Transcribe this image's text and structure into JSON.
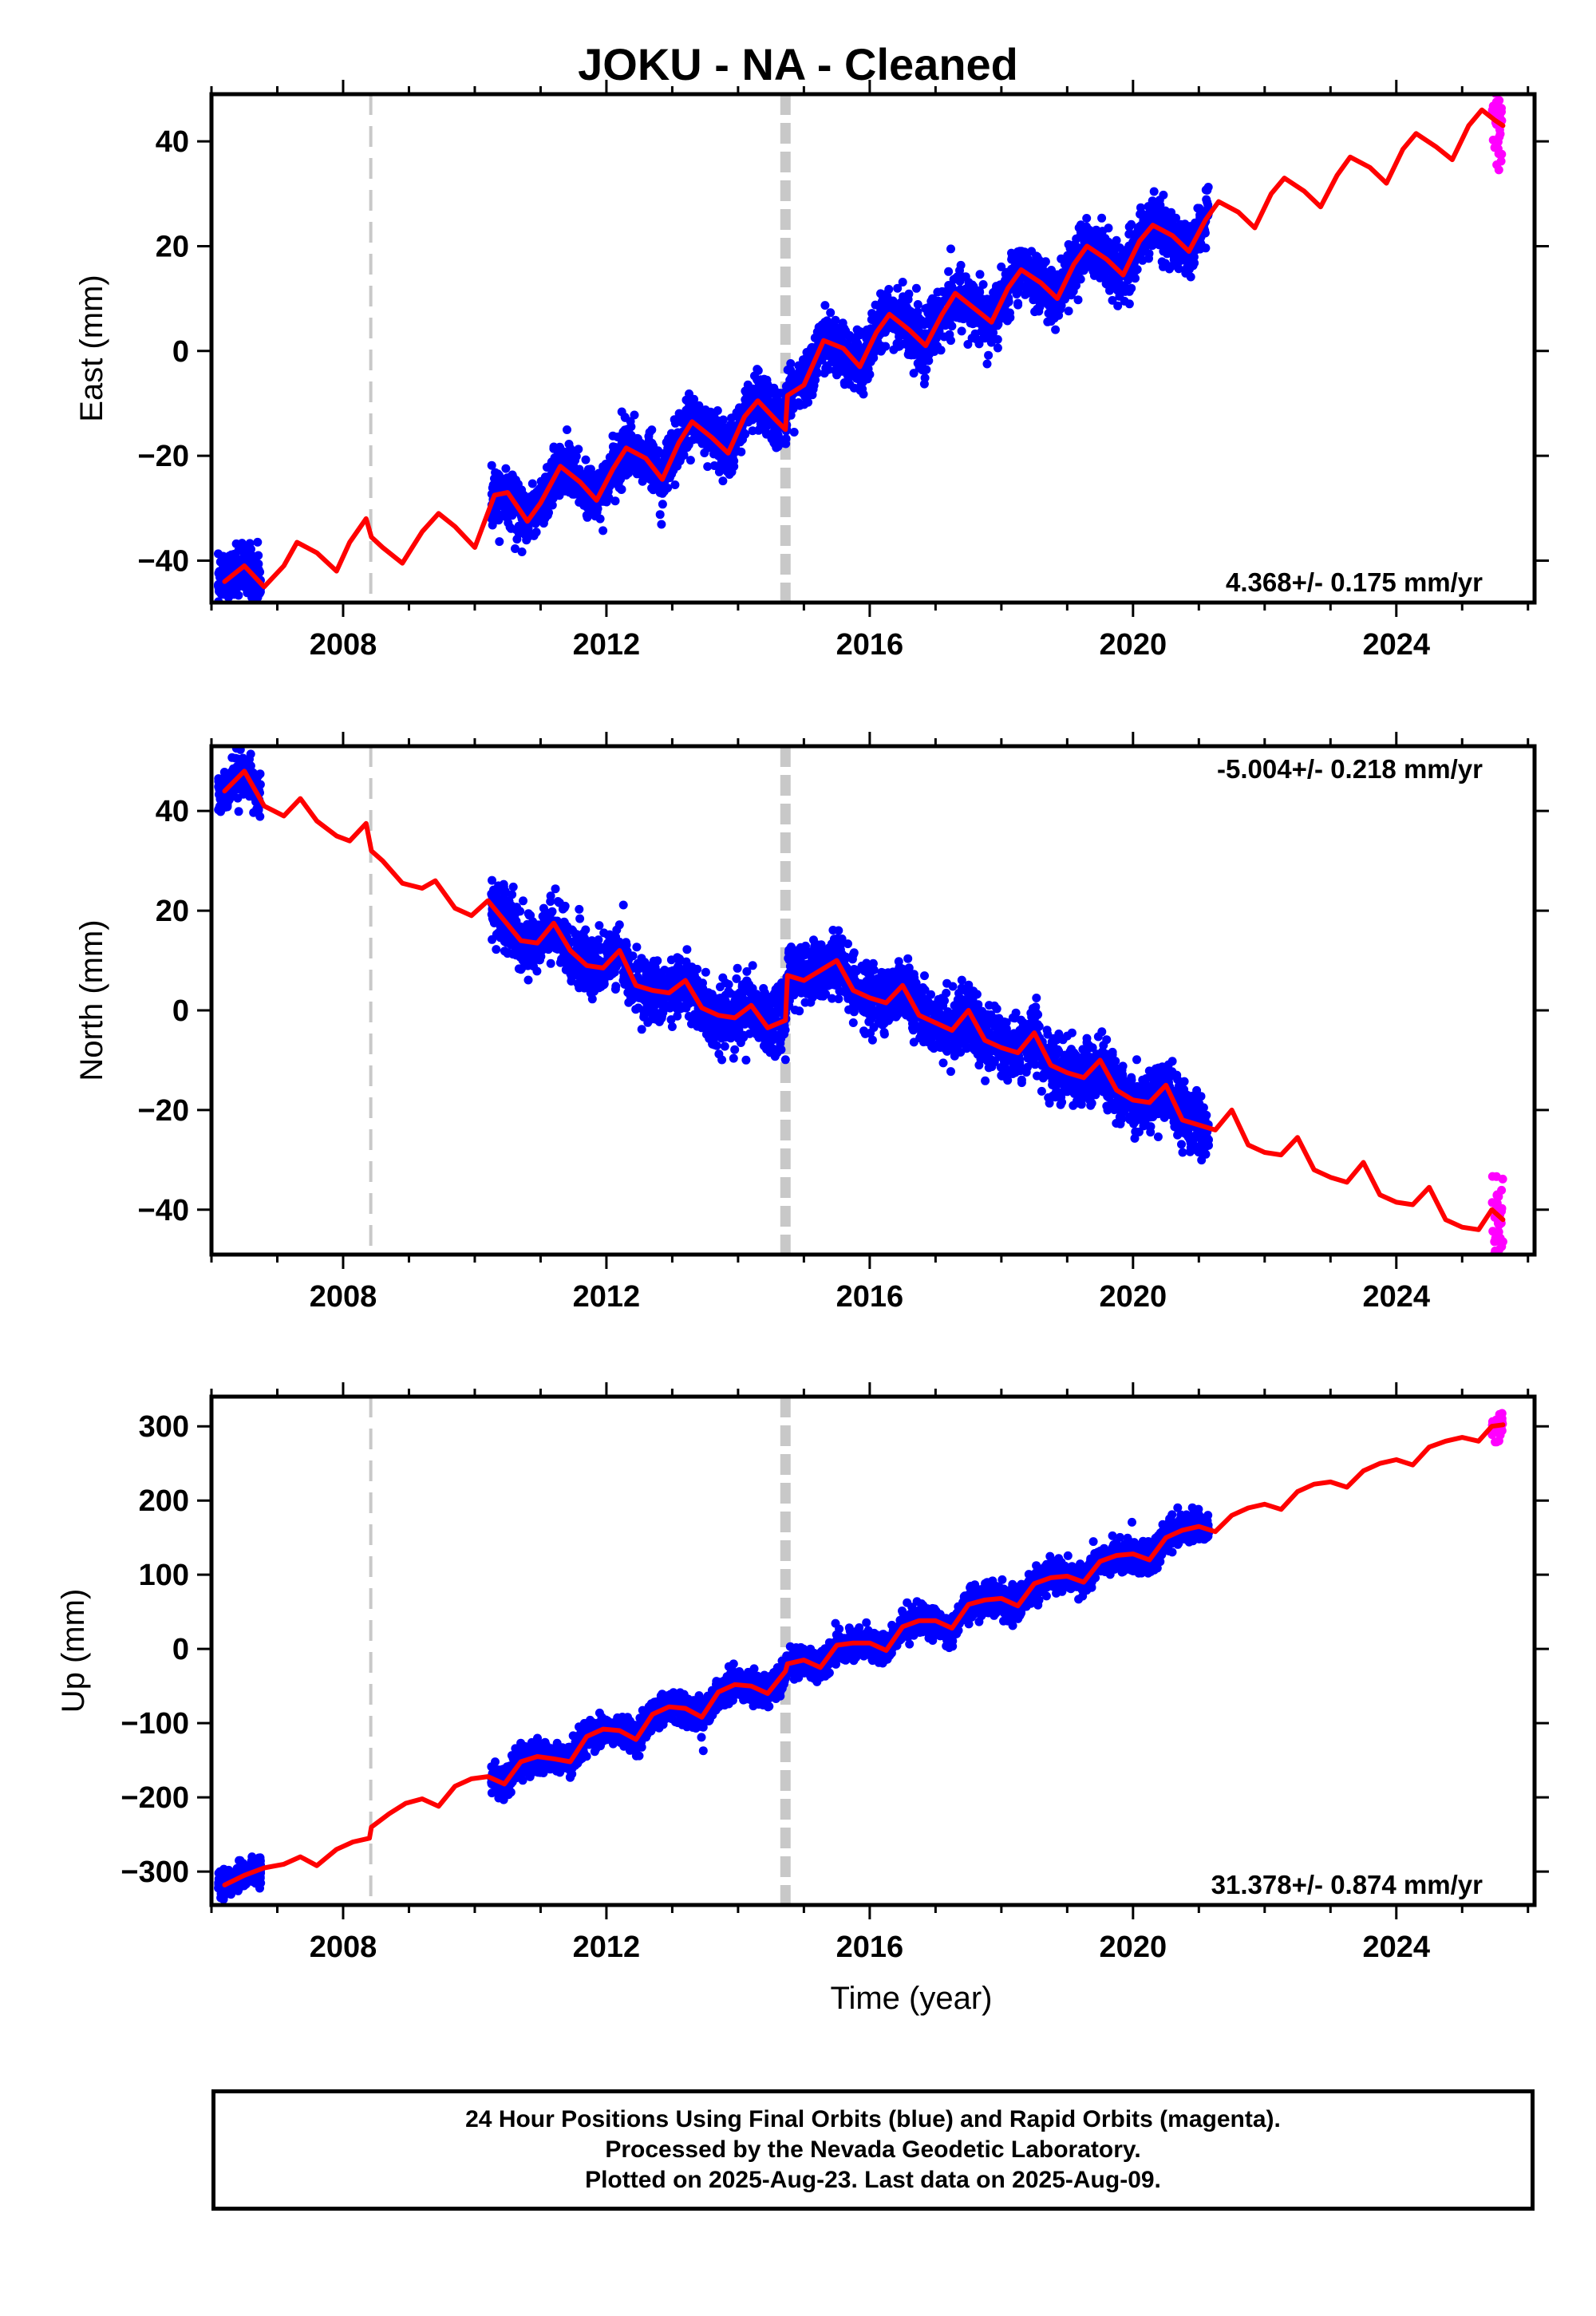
{
  "title": "JOKU  - NA - Cleaned",
  "colors": {
    "final_orbits": "#0000ff",
    "rapid_orbits": "#ff00ff",
    "model": "#ff0000",
    "event_lines": "#c8c8c8",
    "frame": "#000000"
  },
  "footer": {
    "line1": "24 Hour Positions Using Final Orbits (blue) and Rapid Orbits (magenta).",
    "line2": "Processed by the Nevada Geodetic Laboratory.",
    "line3": "Plotted on 2025-Aug-23. Last data on 2025-Aug-09."
  },
  "chart_data": [
    {
      "type": "scatter",
      "ylabel": "East (mm)",
      "xlim": [
        2006.0,
        2026.1
      ],
      "ylim": [
        -48,
        49
      ],
      "xticks": [
        2008,
        2012,
        2016,
        2020,
        2024
      ],
      "yticks": [
        -40,
        -20,
        0,
        20,
        40
      ],
      "rate_label": "4.368+/- 0.175 mm/yr",
      "rate_position": "bottom-right",
      "event_lines": [
        {
          "x": 2008.42,
          "style": "dashed-thin"
        },
        {
          "x": 2014.72,
          "style": "dashed-thick"
        }
      ],
      "series": [
        {
          "kind": "model",
          "x": [
            2006.2,
            2006.5,
            2006.8,
            2007.1,
            2007.3,
            2007.6,
            2007.9,
            2008.1,
            2008.35,
            2008.43,
            2008.6,
            2008.9,
            2009.2,
            2009.45,
            2009.7,
            2010.0,
            2010.3,
            2010.5,
            2010.8,
            2011.0,
            2011.3,
            2011.6,
            2011.85,
            2012.1,
            2012.3,
            2012.6,
            2012.85,
            2013.1,
            2013.3,
            2013.6,
            2013.85,
            2014.1,
            2014.3,
            2014.6,
            2014.72,
            2014.75,
            2015.0,
            2015.3,
            2015.6,
            2015.85,
            2016.1,
            2016.3,
            2016.6,
            2016.85,
            2017.1,
            2017.3,
            2017.6,
            2017.85,
            2018.1,
            2018.3,
            2018.6,
            2018.85,
            2019.1,
            2019.3,
            2019.6,
            2019.85,
            2020.1,
            2020.3,
            2020.6,
            2020.85,
            2021.1,
            2021.3,
            2021.6,
            2021.85,
            2022.1,
            2022.3,
            2022.6,
            2022.85,
            2023.1,
            2023.3,
            2023.6,
            2023.85,
            2024.1,
            2024.3,
            2024.6,
            2024.85,
            2025.1,
            2025.3,
            2025.5,
            2025.62
          ],
          "y": [
            -44,
            -41,
            -45,
            -41,
            -36.5,
            -38.5,
            -42,
            -36.5,
            -32,
            -35.5,
            -37.5,
            -40.5,
            -34.5,
            -31,
            -33.5,
            -37.5,
            -27.5,
            -27,
            -32.5,
            -29,
            -22,
            -25,
            -28.5,
            -22.5,
            -18.5,
            -20.5,
            -24.5,
            -17.5,
            -13.5,
            -16.5,
            -19.5,
            -12.5,
            -9.5,
            -13.5,
            -15,
            -8.5,
            -6.5,
            2,
            0.5,
            -3,
            3.5,
            7,
            4,
            1,
            7,
            11,
            8,
            5.5,
            12,
            15.5,
            13,
            10,
            16.5,
            20,
            17.5,
            14.5,
            21,
            24,
            22,
            19,
            25,
            28.5,
            26.5,
            23.5,
            30,
            33,
            30.5,
            27.5,
            33.5,
            37,
            35,
            32,
            38.5,
            41.5,
            39,
            36.5,
            43,
            46,
            44,
            43
          ]
        },
        {
          "kind": "final_orbits",
          "segments": [
            {
              "x0": 2006.1,
              "x1": 2006.75,
              "mean": "model",
              "scatter": 2.5
            },
            {
              "x0": 2010.25,
              "x1": 2021.15,
              "mean": "model",
              "scatter": 2.6
            }
          ]
        },
        {
          "kind": "rapid_orbits",
          "segments": [
            {
              "x0": 2025.45,
              "x1": 2025.62,
              "mean": "model",
              "scatter": 3.5
            }
          ]
        }
      ]
    },
    {
      "type": "scatter",
      "ylabel": "North (mm)",
      "xlim": [
        2006.0,
        2026.1
      ],
      "ylim": [
        -49,
        53
      ],
      "xticks": [
        2008,
        2012,
        2016,
        2020,
        2024
      ],
      "yticks": [
        -40,
        -20,
        0,
        20,
        40
      ],
      "rate_label": "-5.004+/- 0.218 mm/yr",
      "rate_position": "top-right",
      "event_lines": [
        {
          "x": 2008.42,
          "style": "dashed-thin"
        },
        {
          "x": 2014.72,
          "style": "dashed-thick"
        }
      ],
      "series": [
        {
          "kind": "model",
          "x": [
            2006.2,
            2006.5,
            2006.8,
            2007.1,
            2007.35,
            2007.6,
            2007.9,
            2008.1,
            2008.35,
            2008.43,
            2008.6,
            2008.9,
            2009.2,
            2009.4,
            2009.7,
            2009.95,
            2010.2,
            2010.45,
            2010.7,
            2010.95,
            2011.2,
            2011.45,
            2011.7,
            2011.95,
            2012.2,
            2012.45,
            2012.7,
            2012.95,
            2013.2,
            2013.45,
            2013.7,
            2013.95,
            2014.2,
            2014.45,
            2014.72,
            2014.75,
            2015.0,
            2015.25,
            2015.5,
            2015.75,
            2016.0,
            2016.25,
            2016.5,
            2016.75,
            2017.0,
            2017.25,
            2017.5,
            2017.75,
            2018.0,
            2018.25,
            2018.5,
            2018.75,
            2019.0,
            2019.25,
            2019.5,
            2019.75,
            2020.0,
            2020.25,
            2020.5,
            2020.75,
            2021.0,
            2021.25,
            2021.5,
            2021.75,
            2022.0,
            2022.25,
            2022.5,
            2022.75,
            2023.0,
            2023.25,
            2023.5,
            2023.75,
            2024.0,
            2024.25,
            2024.5,
            2024.75,
            2025.0,
            2025.25,
            2025.45,
            2025.62
          ],
          "y": [
            44,
            48,
            41,
            39,
            42.5,
            38,
            35,
            34,
            37.5,
            32,
            30,
            25.5,
            24.5,
            26,
            20.5,
            19,
            22,
            18,
            14,
            13.5,
            17.5,
            12,
            9,
            8.5,
            12,
            5,
            4,
            3.5,
            6,
            0.5,
            -1,
            -1.5,
            1,
            -3.5,
            -2,
            7,
            6,
            8,
            10,
            4,
            2.5,
            1.5,
            5,
            -1,
            -2.5,
            -4,
            0,
            -6,
            -7.5,
            -8.5,
            -4.5,
            -11,
            -12.5,
            -13.5,
            -10,
            -16,
            -18,
            -18.5,
            -15,
            -22,
            -23,
            -24,
            -20,
            -27,
            -28.5,
            -29,
            -25.5,
            -32,
            -33.5,
            -34.5,
            -30.5,
            -37,
            -38.5,
            -39,
            -35.5,
            -42,
            -43.5,
            -44,
            -40,
            -42
          ]
        },
        {
          "kind": "final_orbits",
          "segments": [
            {
              "x0": 2006.1,
              "x1": 2006.75,
              "mean": "model",
              "scatter": 2.5
            },
            {
              "x0": 2010.25,
              "x1": 2021.15,
              "mean": "model",
              "scatter": 3.0
            }
          ]
        },
        {
          "kind": "rapid_orbits",
          "segments": [
            {
              "x0": 2025.45,
              "x1": 2025.62,
              "mean": "model",
              "scatter": 3.5
            }
          ]
        }
      ]
    },
    {
      "type": "scatter",
      "ylabel": "Up (mm)",
      "xlim": [
        2006.0,
        2026.1
      ],
      "ylim": [
        -345,
        340
      ],
      "xticks": [
        2008,
        2012,
        2016,
        2020,
        2024
      ],
      "yticks": [
        -300,
        -200,
        -100,
        0,
        100,
        200,
        300
      ],
      "xlabel": "Time (year)",
      "rate_label": "31.378+/- 0.874 mm/yr",
      "rate_position": "bottom-right",
      "event_lines": [
        {
          "x": 2008.42,
          "style": "dashed-thin"
        },
        {
          "x": 2014.72,
          "style": "dashed-thick"
        }
      ],
      "series": [
        {
          "kind": "model",
          "x": [
            2006.2,
            2006.5,
            2006.8,
            2007.1,
            2007.35,
            2007.6,
            2007.9,
            2008.15,
            2008.4,
            2008.43,
            2008.7,
            2008.95,
            2009.2,
            2009.45,
            2009.7,
            2009.95,
            2010.2,
            2010.45,
            2010.7,
            2010.95,
            2011.2,
            2011.45,
            2011.7,
            2011.95,
            2012.2,
            2012.45,
            2012.7,
            2012.95,
            2013.2,
            2013.45,
            2013.7,
            2013.95,
            2014.2,
            2014.45,
            2014.72,
            2014.75,
            2015.0,
            2015.25,
            2015.5,
            2015.75,
            2016.0,
            2016.25,
            2016.5,
            2016.75,
            2017.0,
            2017.25,
            2017.5,
            2017.75,
            2018.0,
            2018.25,
            2018.5,
            2018.75,
            2019.0,
            2019.25,
            2019.5,
            2019.75,
            2020.0,
            2020.25,
            2020.5,
            2020.75,
            2021.0,
            2021.25,
            2021.5,
            2021.75,
            2022.0,
            2022.25,
            2022.5,
            2022.75,
            2023.0,
            2023.25,
            2023.5,
            2023.75,
            2024.0,
            2024.25,
            2024.5,
            2024.75,
            2025.0,
            2025.25,
            2025.45,
            2025.62
          ],
          "y": [
            -318,
            -305,
            -295,
            -290,
            -280,
            -292,
            -270,
            -260,
            -255,
            -240,
            -222,
            -208,
            -202,
            -212,
            -185,
            -175,
            -172,
            -182,
            -152,
            -145,
            -148,
            -152,
            -118,
            -108,
            -110,
            -122,
            -88,
            -78,
            -80,
            -92,
            -58,
            -48,
            -50,
            -60,
            -30,
            -20,
            -15,
            -25,
            5,
            8,
            8,
            -2,
            30,
            38,
            38,
            28,
            60,
            66,
            68,
            58,
            88,
            96,
            98,
            90,
            118,
            126,
            128,
            120,
            150,
            160,
            165,
            158,
            180,
            190,
            195,
            188,
            212,
            222,
            225,
            218,
            240,
            250,
            255,
            248,
            272,
            280,
            285,
            280,
            300,
            302
          ]
        },
        {
          "kind": "final_orbits",
          "segments": [
            {
              "x0": 2006.1,
              "x1": 2006.75,
              "mean": "model",
              "scatter": 9
            },
            {
              "x0": 2010.25,
              "x1": 2021.15,
              "mean": "model",
              "scatter": 10
            }
          ]
        },
        {
          "kind": "rapid_orbits",
          "segments": [
            {
              "x0": 2025.45,
              "x1": 2025.62,
              "mean": "model",
              "scatter": 9
            }
          ]
        }
      ]
    }
  ]
}
